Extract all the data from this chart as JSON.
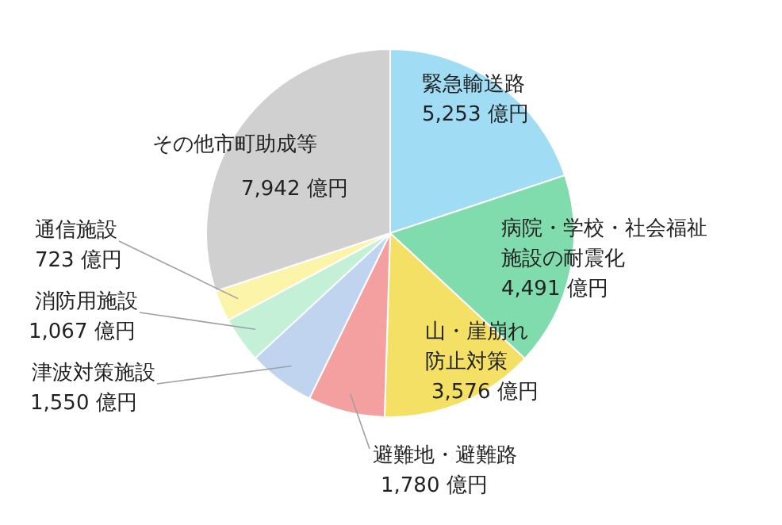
{
  "chart_data": {
    "type": "pie",
    "categories": [
      "緊急輸送路",
      "病院・学校・社会福祉施設の耐震化",
      "山・崖崩れ防止対策",
      "避難地・避難路",
      "津波対策施設",
      "消防用施設",
      "通信施設",
      "その他市町助成等"
    ],
    "values": [
      5253,
      4491,
      3576,
      1780,
      1550,
      1067,
      723,
      7942
    ],
    "value_labels": [
      "5,253 億円",
      "4,491 億円",
      "3,576 億円",
      "1,780 億円",
      "1,550 億円",
      "1,067 億円",
      "723 億円",
      "7,942 億円"
    ],
    "colors": [
      "#a0dcf4",
      "#80dcac",
      "#f4e064",
      "#f4a0a0",
      "#c0d4f0",
      "#c4f0d8",
      "#fcf4a8",
      "#d0d0d0"
    ]
  }
}
